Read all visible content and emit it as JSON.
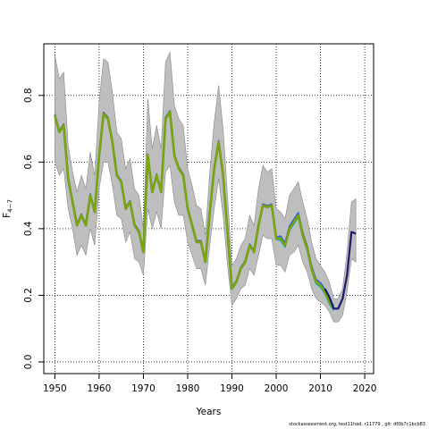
{
  "chart_data": {
    "type": "line",
    "xlabel": "Years",
    "ylabel_main": "F",
    "ylabel_sub": "4−7",
    "xlim": [
      1947.5,
      2022
    ],
    "ylim": [
      -0.035,
      0.955
    ],
    "x_ticks": [
      1950,
      1960,
      1970,
      1980,
      1990,
      2000,
      2010,
      2020
    ],
    "y_ticks": [
      0.0,
      0.2,
      0.4,
      0.6,
      0.8
    ],
    "y_tick_labels": [
      "0.0",
      "0.2",
      "0.4",
      "0.6",
      "0.8"
    ],
    "grid": true,
    "colors": {
      "band": "#bebebe",
      "retro_blue": "#3a5fcd",
      "retro_cyan": "#00bfbf",
      "retro_green": "#7cae00",
      "retro_olive": "#6b8e23",
      "final_navy": "#1a1a6e"
    },
    "band": {
      "x": [
        1950,
        1951,
        1952,
        1953,
        1954,
        1955,
        1956,
        1957,
        1958,
        1959,
        1960,
        1961,
        1962,
        1963,
        1964,
        1965,
        1966,
        1967,
        1968,
        1969,
        1970,
        1971,
        1972,
        1973,
        1974,
        1975,
        1976,
        1977,
        1978,
        1979,
        1980,
        1981,
        1982,
        1983,
        1984,
        1985,
        1986,
        1987,
        1988,
        1989,
        1990,
        1991,
        1992,
        1993,
        1994,
        1995,
        1996,
        1997,
        1998,
        1999,
        2000,
        2001,
        2002,
        2003,
        2004,
        2005,
        2006,
        2007,
        2008,
        2009,
        2010,
        2011,
        2012,
        2013,
        2014,
        2015,
        2016,
        2017,
        2018
      ],
      "upper": [
        0.92,
        0.85,
        0.87,
        0.65,
        0.57,
        0.51,
        0.56,
        0.52,
        0.63,
        0.56,
        0.78,
        0.91,
        0.9,
        0.81,
        0.69,
        0.67,
        0.58,
        0.61,
        0.52,
        0.5,
        0.4,
        0.79,
        0.64,
        0.71,
        0.64,
        0.9,
        0.93,
        0.77,
        0.73,
        0.71,
        0.58,
        0.53,
        0.47,
        0.46,
        0.38,
        0.57,
        0.72,
        0.83,
        0.7,
        0.5,
        0.29,
        0.31,
        0.35,
        0.37,
        0.44,
        0.41,
        0.52,
        0.59,
        0.57,
        0.58,
        0.46,
        0.45,
        0.43,
        0.5,
        0.52,
        0.54,
        0.48,
        0.43,
        0.36,
        0.31,
        0.29,
        0.27,
        0.24,
        0.19,
        0.19,
        0.22,
        0.33,
        0.48,
        0.49
      ],
      "lower": [
        0.6,
        0.56,
        0.58,
        0.46,
        0.4,
        0.32,
        0.35,
        0.32,
        0.4,
        0.35,
        0.52,
        0.6,
        0.6,
        0.53,
        0.44,
        0.43,
        0.36,
        0.39,
        0.31,
        0.3,
        0.26,
        0.46,
        0.4,
        0.45,
        0.4,
        0.57,
        0.59,
        0.48,
        0.44,
        0.44,
        0.36,
        0.32,
        0.28,
        0.28,
        0.23,
        0.35,
        0.46,
        0.55,
        0.44,
        0.29,
        0.17,
        0.19,
        0.22,
        0.23,
        0.28,
        0.26,
        0.32,
        0.38,
        0.37,
        0.37,
        0.29,
        0.29,
        0.27,
        0.32,
        0.33,
        0.35,
        0.3,
        0.27,
        0.22,
        0.19,
        0.18,
        0.17,
        0.15,
        0.12,
        0.12,
        0.14,
        0.21,
        0.31,
        0.3
      ]
    },
    "series": [
      {
        "x": [
          1950,
          1951,
          1952,
          1953,
          1954,
          1955,
          1956,
          1957,
          1958,
          1959,
          1960,
          1961,
          1962,
          1963,
          1964,
          1965,
          1966,
          1967,
          1968,
          1969,
          1970,
          1971,
          1972,
          1973,
          1974,
          1975,
          1976,
          1977,
          1978,
          1979,
          1980,
          1981,
          1982,
          1983,
          1984,
          1985,
          1986,
          1987,
          1988,
          1989,
          1990,
          1991,
          1992,
          1993,
          1994,
          1995,
          1996,
          1997,
          1998,
          1999,
          2000,
          2001,
          2002,
          2003,
          2004,
          2005,
          2006,
          2007,
          2008,
          2009,
          2010,
          2011,
          2012,
          2013
        ],
        "values": [
          0.74,
          0.69,
          0.71,
          0.55,
          0.48,
          0.41,
          0.44,
          0.41,
          0.5,
          0.45,
          0.62,
          0.745,
          0.73,
          0.66,
          0.56,
          0.54,
          0.46,
          0.48,
          0.41,
          0.39,
          0.33,
          0.62,
          0.51,
          0.56,
          0.51,
          0.73,
          0.75,
          0.62,
          0.58,
          0.56,
          0.46,
          0.41,
          0.36,
          0.36,
          0.3,
          0.45,
          0.58,
          0.66,
          0.56,
          0.39,
          0.22,
          0.24,
          0.28,
          0.3,
          0.35,
          0.33,
          0.41,
          0.47,
          0.465,
          0.47,
          0.37,
          0.37,
          0.35,
          0.4,
          0.42,
          0.44,
          0.38,
          0.34,
          0.28,
          0.24,
          0.23,
          0.21,
          0.18,
          0.16
        ],
        "color": "#7cae00"
      },
      {
        "x": [
          2011,
          2012,
          2013,
          2014,
          2015,
          2016,
          2017,
          2018
        ],
        "values": [
          0.22,
          0.195,
          0.16,
          0.16,
          0.19,
          0.26,
          0.39,
          0.385
        ],
        "color": "#1a1a6e"
      }
    ]
  },
  "footer": "stockassessment.org, test11had, r11779 , git: df0b7c1bcb83"
}
